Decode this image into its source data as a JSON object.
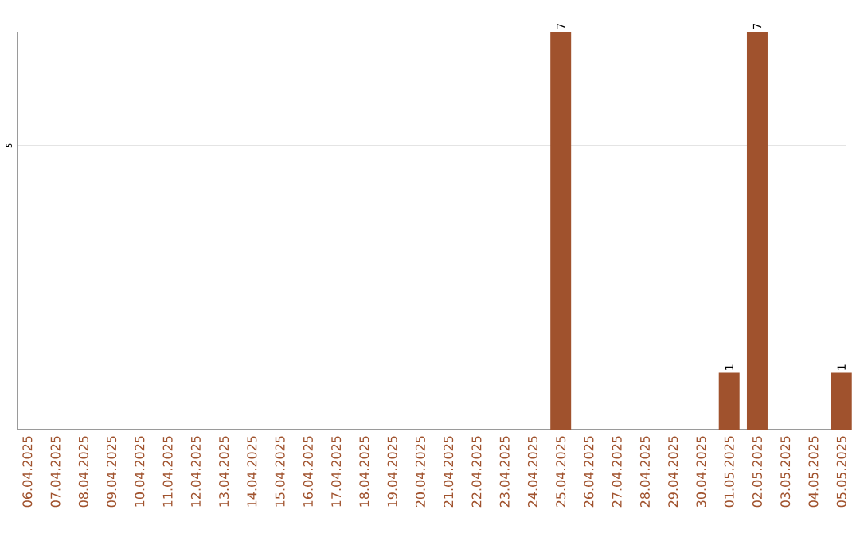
{
  "chart_data": {
    "type": "bar",
    "categories": [
      "06.04.2025",
      "07.04.2025",
      "08.04.2025",
      "09.04.2025",
      "10.04.2025",
      "11.04.2025",
      "12.04.2025",
      "13.04.2025",
      "14.04.2025",
      "15.04.2025",
      "16.04.2025",
      "17.04.2025",
      "18.04.2025",
      "19.04.2025",
      "20.04.2025",
      "21.04.2025",
      "22.04.2025",
      "23.04.2025",
      "24.04.2025",
      "25.04.2025",
      "26.04.2025",
      "27.04.2025",
      "28.04.2025",
      "29.04.2025",
      "30.04.2025",
      "01.05.2025",
      "02.05.2025",
      "03.05.2025",
      "04.05.2025",
      "05.05.2025"
    ],
    "values": [
      null,
      null,
      null,
      null,
      null,
      null,
      null,
      null,
      null,
      null,
      null,
      null,
      null,
      null,
      null,
      null,
      null,
      null,
      null,
      7,
      null,
      null,
      null,
      null,
      null,
      1,
      7,
      null,
      null,
      1
    ],
    "color": "#a0522d",
    "ylim": [
      0,
      7
    ],
    "yticks": [
      5
    ],
    "grid": "y",
    "data_labels": true
  }
}
